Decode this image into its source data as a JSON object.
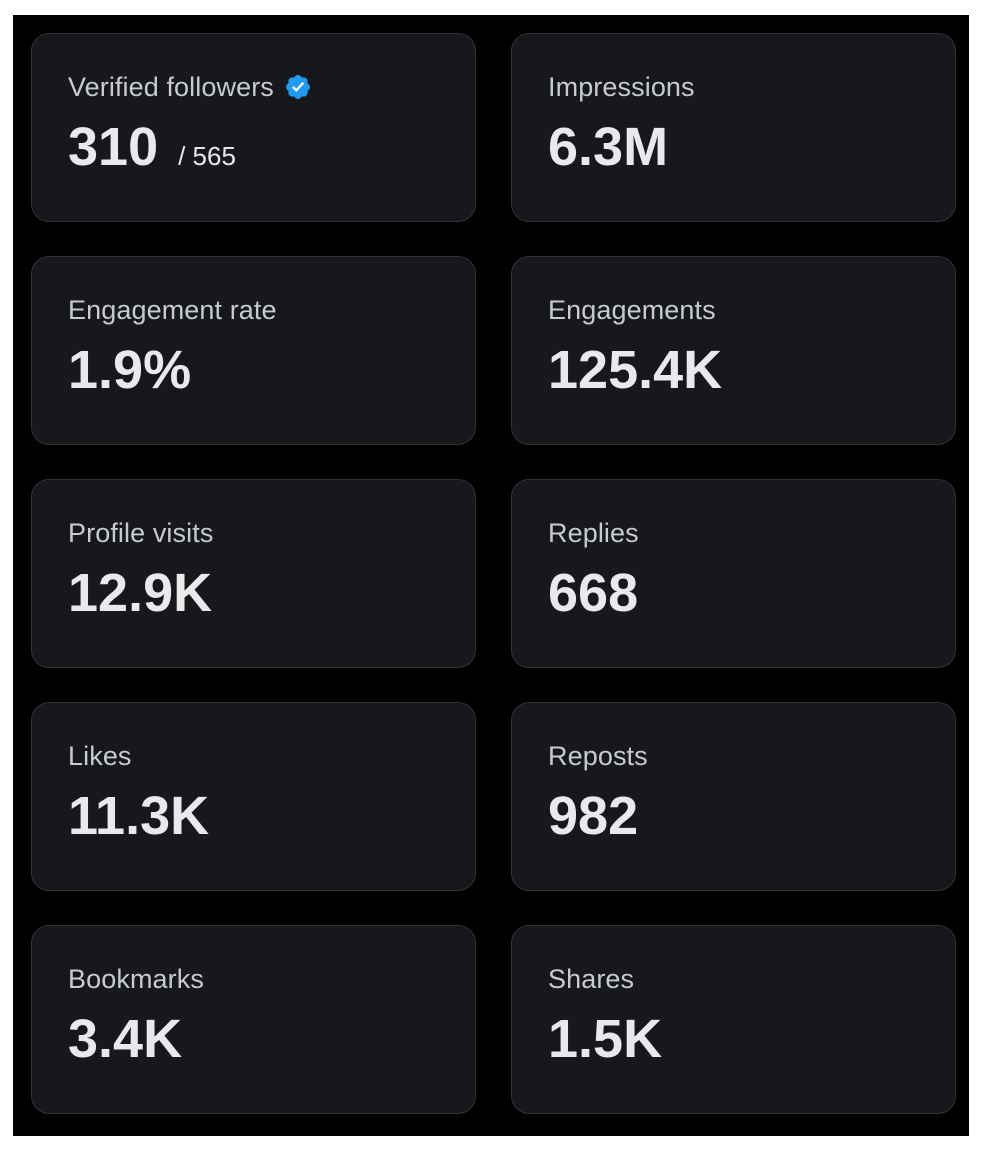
{
  "metrics": [
    {
      "label": "Verified followers",
      "value": "310",
      "sub_value": "/ 565",
      "verified": true
    },
    {
      "label": "Impressions",
      "value": "6.3M"
    },
    {
      "label": "Engagement rate",
      "value": "1.9%"
    },
    {
      "label": "Engagements",
      "value": "125.4K"
    },
    {
      "label": "Profile visits",
      "value": "12.9K"
    },
    {
      "label": "Replies",
      "value": "668"
    },
    {
      "label": "Likes",
      "value": "11.3K"
    },
    {
      "label": "Reposts",
      "value": "982"
    },
    {
      "label": "Bookmarks",
      "value": "3.4K"
    },
    {
      "label": "Shares",
      "value": "1.5K"
    }
  ],
  "icons": {
    "verified": "verified-badge-icon"
  },
  "colors": {
    "background": "#000000",
    "card": "#16181c",
    "card_border": "#2f3336",
    "label_text": "#c8cbce",
    "value_text": "#e7e9ea",
    "verified_badge": "#1d9bf0"
  }
}
